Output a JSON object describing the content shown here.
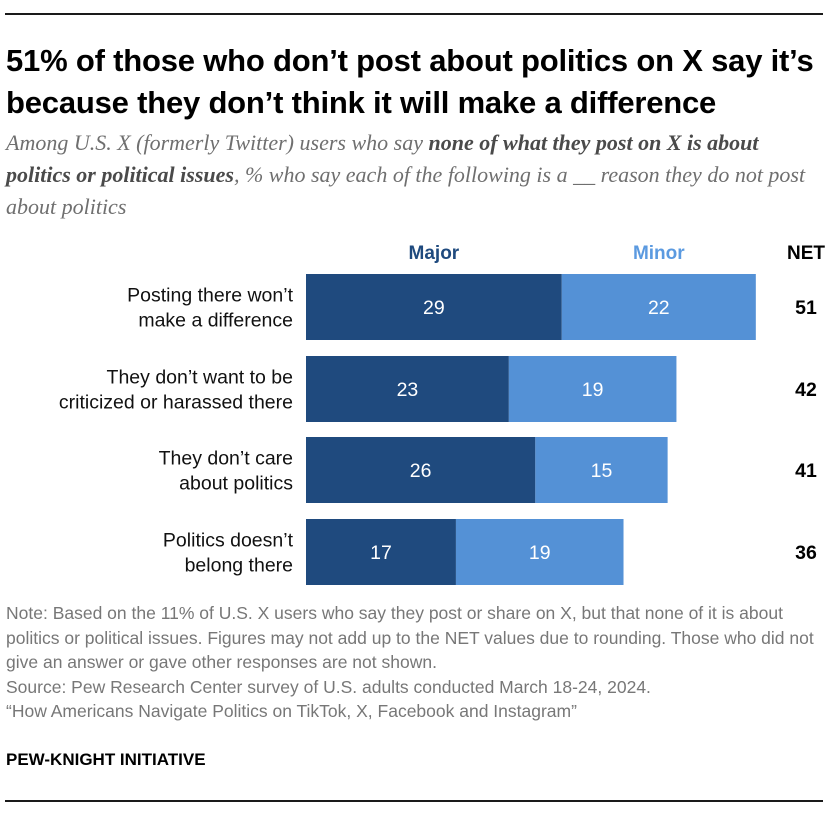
{
  "title": "51% of those who don’t post about politics on X say it’s because they don’t think it will make a difference",
  "subtitle": {
    "part1": "Among U.S. X (formerly Twitter) users who say ",
    "emphasis": "none of what they post on X is about politics or political issues",
    "part2": ", % who say each of the following is a __ reason they do not post about politics"
  },
  "colors": {
    "major": "#1f4a7e",
    "minor": "#5491d6",
    "major_label": "#1f4a7e",
    "minor_label": "#5b9ae0"
  },
  "chart_data": {
    "type": "bar",
    "orientation": "horizontal",
    "stacked": true,
    "categories": [
      [
        "Posting there won’t",
        "make a difference"
      ],
      [
        "They don’t want to be",
        "criticized or harassed there"
      ],
      [
        "They don’t care",
        "about politics"
      ],
      [
        "Politics doesn’t",
        "belong there"
      ]
    ],
    "series": [
      {
        "name": "Major",
        "values": [
          29,
          23,
          26,
          17
        ]
      },
      {
        "name": "Minor",
        "values": [
          22,
          19,
          15,
          19
        ]
      }
    ],
    "net_label": "NET",
    "net": [
      51,
      42,
      41,
      36
    ],
    "xlim": [
      0,
      51
    ]
  },
  "notes": [
    "Note: Based on the 11% of U.S. X users who say they post or share on X, but that none of it is about politics or political issues. Figures may not add up to the NET values due to rounding. Those who did not give an answer or gave other responses are not shown.",
    "Source: Pew Research Center survey of U.S. adults conducted March 18-24, 2024.",
    "“How Americans Navigate Politics on TikTok, X, Facebook and Instagram”"
  ],
  "brand": "PEW-KNIGHT INITIATIVE"
}
